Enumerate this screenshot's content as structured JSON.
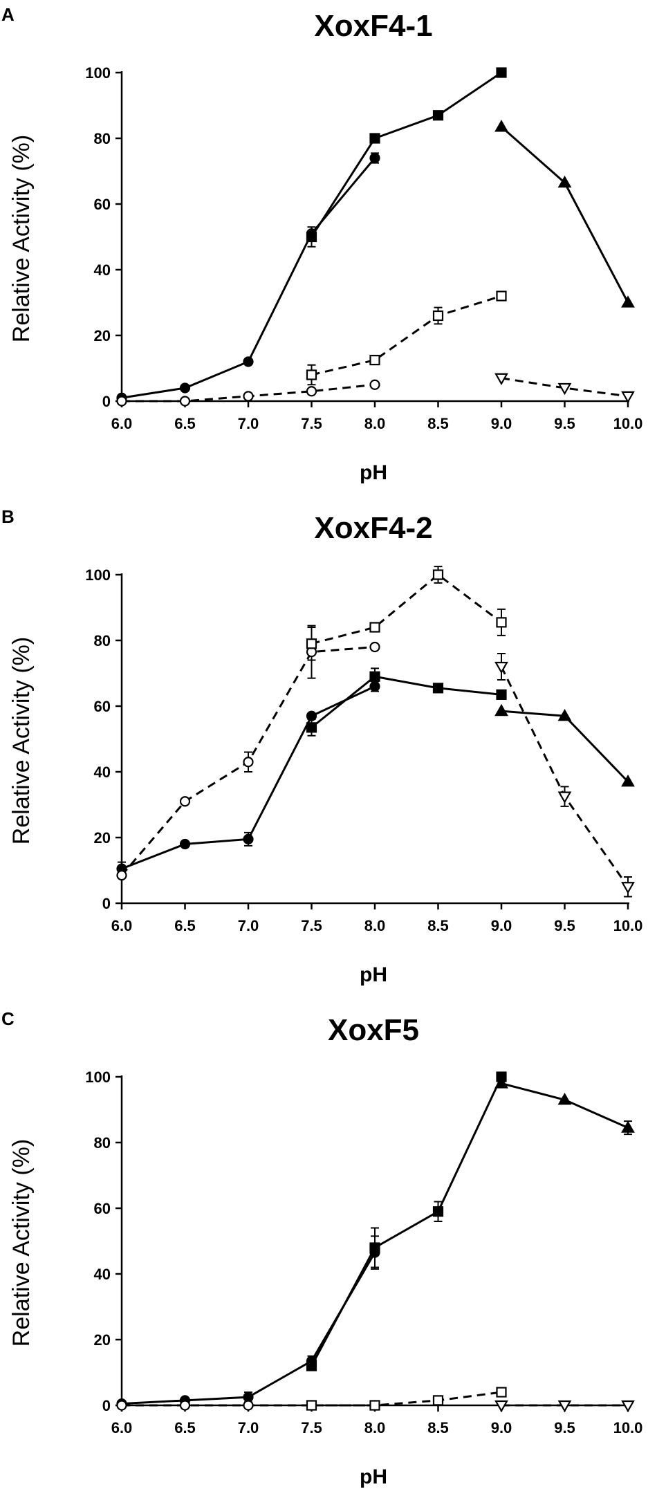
{
  "chart_data": [
    {
      "panel": "A",
      "type": "line",
      "title": "XoxF4-1",
      "xlabel": "pH",
      "ylabel": "Relative Activity (%)",
      "xlim": [
        6.0,
        10.0
      ],
      "ylim": [
        0,
        100
      ],
      "x_ticks": [
        "6.0",
        "6.5",
        "7.0",
        "7.5",
        "8.0",
        "8.5",
        "9.0",
        "9.5",
        "10.0"
      ],
      "y_ticks": [
        "0",
        "20",
        "40",
        "60",
        "80",
        "100"
      ],
      "grid": false,
      "series": [
        {
          "marker": "circle-filled",
          "line": "solid",
          "x": [
            6.0,
            6.5,
            7.0,
            7.5,
            8.0
          ],
          "y": [
            1,
            4,
            12,
            51,
            74
          ],
          "err": [
            0,
            0,
            0,
            0,
            1.5
          ]
        },
        {
          "marker": "square-filled",
          "line": "solid",
          "x": [
            7.5,
            8.0,
            8.5,
            9.0
          ],
          "y": [
            50,
            80,
            87,
            100
          ],
          "err": [
            3,
            0,
            0,
            0
          ]
        },
        {
          "marker": "triangle-up-filled",
          "line": "solid",
          "x": [
            9.0,
            9.5,
            10.0
          ],
          "y": [
            83.5,
            66.5,
            30
          ],
          "err": [
            0,
            0,
            0
          ]
        },
        {
          "marker": "circle-open",
          "line": "dashed",
          "x": [
            6.0,
            6.5,
            7.0,
            7.5,
            8.0
          ],
          "y": [
            0,
            0,
            1.5,
            3,
            5
          ],
          "err": [
            0,
            0,
            0,
            0,
            0
          ]
        },
        {
          "marker": "square-open",
          "line": "dashed",
          "x": [
            7.5,
            8.0,
            8.5,
            9.0
          ],
          "y": [
            8,
            12.5,
            26,
            32
          ],
          "err": [
            3,
            0,
            2.5,
            0
          ]
        },
        {
          "marker": "triangle-down-open",
          "line": "dashed",
          "x": [
            9.0,
            9.5,
            10.0
          ],
          "y": [
            7,
            4,
            1.5
          ],
          "err": [
            0,
            0,
            0
          ]
        }
      ]
    },
    {
      "panel": "B",
      "type": "line",
      "title": "XoxF4-2",
      "xlabel": "pH",
      "ylabel": "Relative Activity (%)",
      "xlim": [
        6.0,
        10.0
      ],
      "ylim": [
        0,
        100
      ],
      "x_ticks": [
        "6.0",
        "6.5",
        "7.0",
        "7.5",
        "8.0",
        "8.5",
        "9.0",
        "9.5",
        "10.0"
      ],
      "y_ticks": [
        "0",
        "20",
        "40",
        "60",
        "80",
        "100"
      ],
      "grid": false,
      "series": [
        {
          "marker": "circle-filled",
          "line": "solid",
          "x": [
            6.0,
            6.5,
            7.0,
            7.5,
            8.0
          ],
          "y": [
            10.5,
            18,
            19.5,
            57,
            66
          ],
          "err": [
            2,
            0,
            2,
            0,
            1.5
          ]
        },
        {
          "marker": "square-filled",
          "line": "solid",
          "x": [
            7.5,
            8.0,
            8.5,
            9.0
          ],
          "y": [
            53.5,
            69,
            65.5,
            63.5
          ],
          "err": [
            2.5,
            2.5,
            0,
            0
          ]
        },
        {
          "marker": "triangle-up-filled",
          "line": "solid",
          "x": [
            9.0,
            9.5,
            10.0
          ],
          "y": [
            58.5,
            57,
            37
          ],
          "err": [
            0,
            0,
            0
          ]
        },
        {
          "marker": "circle-open",
          "line": "dashed",
          "x": [
            6.0,
            6.5,
            7.0,
            7.5,
            8.0
          ],
          "y": [
            8.5,
            31,
            43,
            76.5,
            78
          ],
          "err": [
            0,
            0,
            3,
            8,
            0
          ]
        },
        {
          "marker": "square-open",
          "line": "dashed",
          "x": [
            7.5,
            8.0,
            8.5,
            9.0
          ],
          "y": [
            79,
            84,
            100,
            85.5
          ],
          "err": [
            5,
            0,
            2.5,
            4
          ]
        },
        {
          "marker": "triangle-down-open",
          "line": "dashed",
          "x": [
            9.0,
            9.5,
            10.0
          ],
          "y": [
            72,
            32.5,
            5
          ],
          "err": [
            4,
            3,
            3
          ]
        }
      ]
    },
    {
      "panel": "C",
      "type": "line",
      "title": "XoxF5",
      "xlabel": "pH",
      "ylabel": "Relative Activity (%)",
      "xlim": [
        6.0,
        10.0
      ],
      "ylim": [
        0,
        100
      ],
      "x_ticks": [
        "6.0",
        "6.5",
        "7.0",
        "7.5",
        "8.0",
        "8.5",
        "9.0",
        "9.5",
        "10.0"
      ],
      "y_ticks": [
        "0",
        "20",
        "40",
        "60",
        "80",
        "100"
      ],
      "grid": false,
      "series": [
        {
          "marker": "circle-filled",
          "line": "solid",
          "x": [
            6.0,
            6.5,
            7.0,
            7.5,
            8.0
          ],
          "y": [
            0.5,
            1.5,
            2.5,
            13.5,
            46.5
          ],
          "err": [
            0,
            0,
            1.5,
            1.5,
            5
          ]
        },
        {
          "marker": "square-filled",
          "line": "solid",
          "x": [
            7.5,
            8.0,
            8.5,
            9.0
          ],
          "y": [
            12,
            48,
            59,
            100
          ],
          "err": [
            0,
            6,
            3,
            0
          ]
        },
        {
          "marker": "triangle-up-filled",
          "line": "solid",
          "x": [
            9.0,
            9.5,
            10.0
          ],
          "y": [
            98,
            93,
            84.5
          ],
          "err": [
            0,
            0,
            2
          ]
        },
        {
          "marker": "circle-open",
          "line": "dashed",
          "x": [
            6.0,
            6.5,
            7.0,
            7.5,
            8.0
          ],
          "y": [
            0,
            0,
            0,
            0,
            0
          ],
          "err": [
            0,
            0,
            0,
            0,
            0
          ]
        },
        {
          "marker": "square-open",
          "line": "dashed",
          "x": [
            7.5,
            8.0,
            8.5,
            9.0
          ],
          "y": [
            0,
            0,
            1.5,
            4
          ],
          "err": [
            0,
            0,
            0,
            0
          ]
        },
        {
          "marker": "triangle-down-open",
          "line": "dashed",
          "x": [
            9.0,
            9.5,
            10.0
          ],
          "y": [
            0,
            0,
            0
          ],
          "err": [
            0,
            0,
            0
          ]
        }
      ]
    }
  ]
}
